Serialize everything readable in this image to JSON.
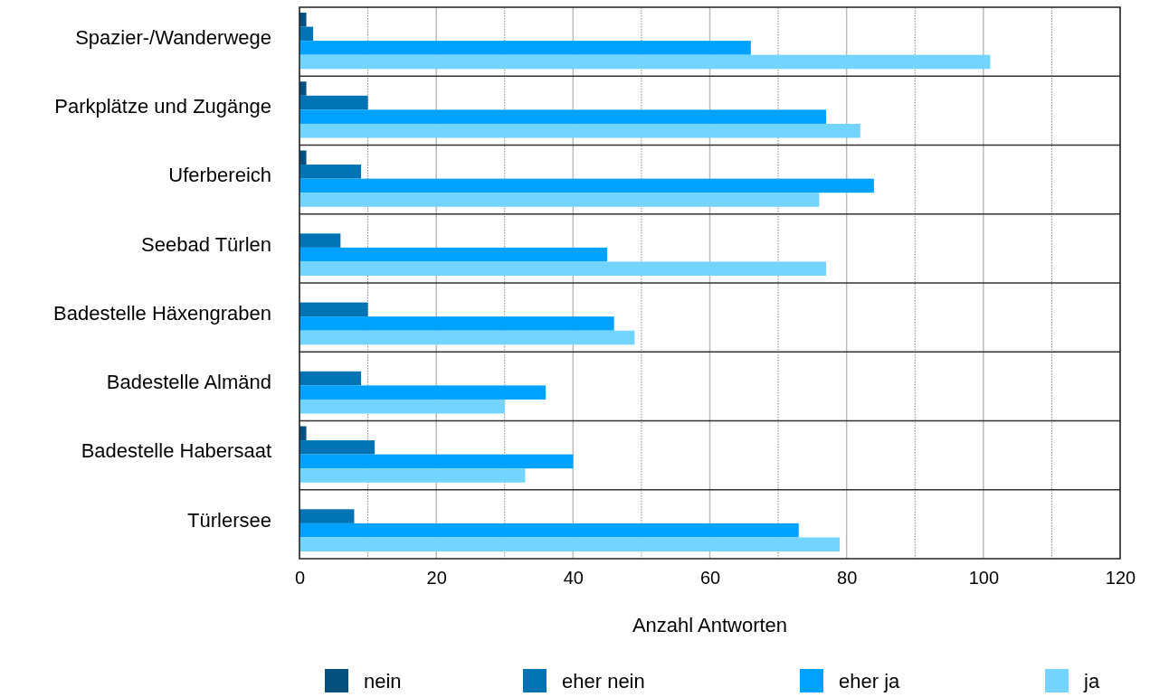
{
  "chart_data": {
    "type": "bar",
    "orientation": "horizontal",
    "xlabel": "Anzahl Antworten",
    "categories": [
      "Spazier-/Wanderwege",
      "Parkplätze und Zugänge",
      "Uferbereich",
      "Seebad Türlen",
      "Badestelle Häxengraben",
      "Badestelle Almänd",
      "Badestelle Habersaat",
      "Türlersee"
    ],
    "series": [
      {
        "name": "nein",
        "color": "#06507f",
        "values": [
          1,
          1,
          1,
          0,
          0,
          0,
          1,
          0
        ]
      },
      {
        "name": "eher nein",
        "color": "#0073b5",
        "values": [
          2,
          10,
          9,
          6,
          10,
          9,
          11,
          8
        ]
      },
      {
        "name": "eher ja",
        "color": "#00a2ff",
        "values": [
          66,
          77,
          84,
          45,
          46,
          36,
          40,
          73
        ]
      },
      {
        "name": "ja",
        "color": "#73d4ff",
        "values": [
          101,
          82,
          76,
          77,
          49,
          30,
          33,
          79
        ]
      }
    ],
    "xlim": [
      0,
      120
    ],
    "xticks": [
      0,
      {
        "value": 10,
        "label": null
      },
      20,
      {
        "value": 30,
        "label": null
      },
      40,
      {
        "value": 50,
        "label": null
      },
      60,
      {
        "value": 70,
        "label": null
      },
      80,
      {
        "value": 90,
        "label": null
      },
      100,
      {
        "value": 110,
        "label": null
      },
      120
    ],
    "grid": "x",
    "legend": "bottom"
  }
}
